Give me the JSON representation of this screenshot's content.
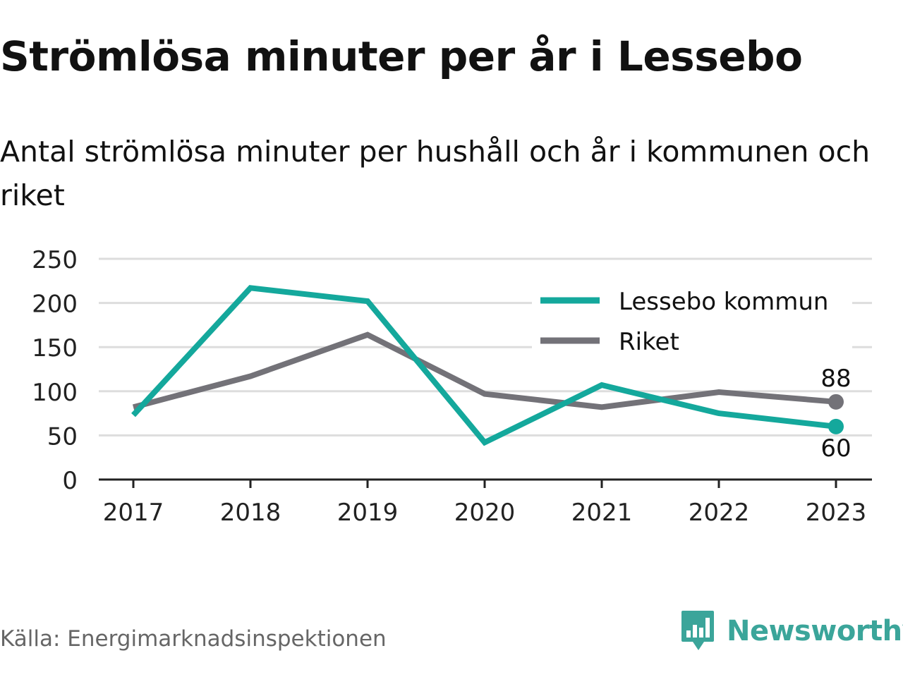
{
  "header": {
    "title": "Strömlösa minuter per år i Lessebo",
    "subtitle": "Antal strömlösa minuter per hushåll och år i kommunen och riket"
  },
  "footer": {
    "source": "Källa: Energimarknadsinspektionen",
    "brand": "Newsworthy"
  },
  "colors": {
    "lessebo": "#14a89c",
    "riket": "#737278",
    "grid": "#dddddd",
    "axis": "#222222",
    "brand": "#3ba59a"
  },
  "chart_data": {
    "type": "line",
    "title": "Strömlösa minuter per år i Lessebo",
    "subtitle": "Antal strömlösa minuter per hushåll och år i kommunen och riket",
    "x": [
      "2017",
      "2018",
      "2019",
      "2020",
      "2021",
      "2022",
      "2023"
    ],
    "y_ticks": [
      0,
      50,
      100,
      150,
      200,
      250
    ],
    "ylim": [
      0,
      250
    ],
    "grid": true,
    "legend_position": "top-right",
    "series": [
      {
        "name": "Lessebo kommun",
        "color": "#14a89c",
        "values": [
          73,
          217,
          202,
          42,
          107,
          75,
          60
        ],
        "end_label": "60"
      },
      {
        "name": "Riket",
        "color": "#737278",
        "values": [
          82,
          117,
          164,
          97,
          82,
          99,
          88
        ],
        "end_label": "88"
      }
    ]
  }
}
